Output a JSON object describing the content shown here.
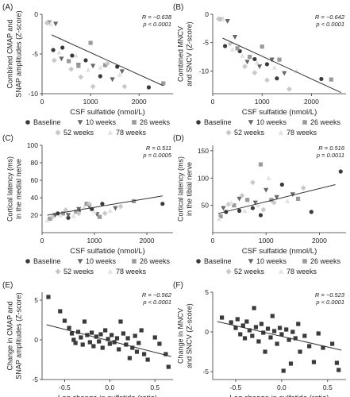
{
  "figure": {
    "legend_labels": {
      "baseline": "Baseline",
      "w10": "10 weeks",
      "w26": "26 weeks",
      "w52": "52 weeks",
      "w78": "78 weeks"
    },
    "series_colors": {
      "baseline": "#3a3a3a",
      "w10": "#666666",
      "w26": "#9a9a9a",
      "w52": "#c8c8c8",
      "w78": "#e2e2e2",
      "points": "#3a3a3a",
      "trend": "#333333"
    }
  },
  "chart_data": [
    {
      "panel": "(A)",
      "type": "scatter",
      "xlabel": "CSF sulfatide (nmol/L)",
      "ylabel": [
        "Combined CMAP and",
        "SNAP amplitudes (Z-score)"
      ],
      "xlim": [
        0,
        2700
      ],
      "ylim": [
        -10,
        0
      ],
      "xticks": [
        "0",
        "1000",
        "2000"
      ],
      "yticks": [
        "0",
        "-5",
        "-10"
      ],
      "stat_r": "R = −0.638",
      "stat_p": "p < 0.0001",
      "legend": true,
      "trend": [
        [
          200,
          -2.6
        ],
        [
          2500,
          -9.0
        ]
      ],
      "series": [
        {
          "key": "baseline",
          "points": [
            [
              230,
              -4.5
            ],
            [
              420,
              -4.2
            ],
            [
              620,
              -5.2
            ],
            [
              900,
              -5.8
            ],
            [
              1200,
              -7.8
            ],
            [
              1550,
              -6.6
            ],
            [
              2200,
              -9.2
            ]
          ]
        },
        {
          "key": "w10",
          "points": [
            [
              280,
              -1.2
            ],
            [
              400,
              -5.6
            ],
            [
              750,
              -6.4
            ],
            [
              1050,
              -6.5
            ],
            [
              1450,
              -8.2
            ],
            [
              1650,
              -7.2
            ]
          ]
        },
        {
          "key": "w26",
          "points": [
            [
              150,
              -1.0
            ],
            [
              550,
              -5.9
            ],
            [
              750,
              -6.5
            ],
            [
              1000,
              -3.6
            ],
            [
              1300,
              -6.4
            ],
            [
              2500,
              -8.7
            ]
          ]
        },
        {
          "key": "w52",
          "points": [
            [
              100,
              -1.1
            ],
            [
              250,
              -5.8
            ],
            [
              600,
              -6.9
            ],
            [
              800,
              -7.9
            ],
            [
              1050,
              -9.1
            ],
            [
              1350,
              -6.2
            ],
            [
              1700,
              -9.1
            ]
          ]
        },
        {
          "key": "w78",
          "points": [
            [
              180,
              -1.2
            ],
            [
              350,
              -4.8
            ],
            [
              700,
              -5.2
            ],
            [
              950,
              -7.0
            ],
            [
              1200,
              -6.7
            ],
            [
              1600,
              -7.6
            ]
          ]
        }
      ]
    },
    {
      "panel": "(B)",
      "type": "scatter",
      "xlabel": "CSF sulfatide (nmol/L)",
      "ylabel": [
        "Combined MNCV",
        "and SNCV (Z-score)"
      ],
      "xlim": [
        0,
        2700
      ],
      "ylim": [
        -14,
        0
      ],
      "xticks": [
        "0",
        "1000",
        "2000"
      ],
      "yticks": [
        "0",
        "-5",
        "-10"
      ],
      "stat_r": "R = −0.642",
      "stat_p": "p < 0.0001",
      "legend": true,
      "trend": [
        [
          200,
          -4.2
        ],
        [
          2600,
          -13.8
        ]
      ],
      "series": [
        {
          "key": "baseline",
          "points": [
            [
              250,
              -5.6
            ],
            [
              550,
              -6.5
            ],
            [
              850,
              -7.9
            ],
            [
              1100,
              -8.8
            ],
            [
              1300,
              -11.3
            ],
            [
              2200,
              -11.4
            ]
          ]
        },
        {
          "key": "w10",
          "points": [
            [
              300,
              -1.2
            ],
            [
              450,
              -4.0
            ],
            [
              700,
              -8.4
            ],
            [
              950,
              -9.2
            ],
            [
              1200,
              -8.0
            ],
            [
              1450,
              -10.4
            ]
          ]
        },
        {
          "key": "w26",
          "points": [
            [
              180,
              -0.9
            ],
            [
              500,
              -6.0
            ],
            [
              750,
              -7.5
            ],
            [
              1000,
              -5.7
            ],
            [
              1350,
              -8.0
            ],
            [
              2400,
              -11.5
            ]
          ]
        },
        {
          "key": "w52",
          "points": [
            [
              120,
              -0.8
            ],
            [
              350,
              -5.2
            ],
            [
              650,
              -9.2
            ],
            [
              850,
              -10.3
            ],
            [
              1100,
              -11.6
            ],
            [
              1550,
              -13.2
            ]
          ]
        },
        {
          "key": "w78",
          "points": [
            [
              200,
              -0.9
            ],
            [
              400,
              -6.2
            ],
            [
              600,
              -7.3
            ],
            [
              900,
              -8.5
            ],
            [
              1250,
              -9.4
            ],
            [
              1700,
              -10.0
            ]
          ]
        }
      ]
    },
    {
      "panel": "(C)",
      "type": "scatter",
      "xlabel": "CSF sulfatide (nmol/L)",
      "ylabel": [
        "Cortical latency (ms)",
        "in the medial nerve"
      ],
      "xlim": [
        0,
        2500
      ],
      "ylim": [
        0,
        100
      ],
      "xticks": [
        "0",
        "1000",
        "2000"
      ],
      "yticks": [
        "20",
        "40",
        "60",
        "80",
        "100"
      ],
      "stat_r": "R = 0.511",
      "stat_p": "p = 0.0005",
      "legend": true,
      "trend": [
        [
          100,
          20
        ],
        [
          2300,
          42
        ]
      ],
      "series": [
        {
          "key": "baseline",
          "points": [
            [
              300,
              22
            ],
            [
              500,
              17
            ],
            [
              700,
              25
            ],
            [
              950,
              27
            ],
            [
              1150,
              33
            ],
            [
              2300,
              33
            ]
          ]
        },
        {
          "key": "w10",
          "points": [
            [
              250,
              20
            ],
            [
              500,
              20
            ],
            [
              700,
              27
            ],
            [
              900,
              30
            ],
            [
              1050,
              21
            ],
            [
              1400,
              28
            ]
          ]
        },
        {
          "key": "w26",
          "points": [
            [
              150,
              16
            ],
            [
              400,
              22
            ],
            [
              650,
              24
            ],
            [
              850,
              33
            ],
            [
              1100,
              18
            ],
            [
              1750,
              36
            ]
          ]
        },
        {
          "key": "w52",
          "points": [
            [
              200,
              18
            ],
            [
              450,
              26
            ],
            [
              700,
              22
            ],
            [
              900,
              33
            ],
            [
              1200,
              22
            ],
            [
              1500,
              30
            ]
          ]
        },
        {
          "key": "w78",
          "points": [
            [
              100,
              14
            ],
            [
              350,
              20
            ],
            [
              600,
              19
            ],
            [
              800,
              29
            ],
            [
              1000,
              24
            ],
            [
              1300,
              25
            ]
          ]
        }
      ]
    },
    {
      "panel": "(D)",
      "type": "scatter",
      "xlabel": "CSF sulfatide (nmol/L)",
      "ylabel": [
        "Cortical latency (ms)",
        "in the tibial nerve"
      ],
      "xlim": [
        0,
        2500
      ],
      "ylim": [
        0,
        160
      ],
      "xticks": [
        "0",
        "1000",
        "2000"
      ],
      "yticks": [
        "50",
        "100",
        "150"
      ],
      "stat_r": "R = 0.516",
      "stat_p": "p = 0.0011",
      "legend": true,
      "trend": [
        [
          100,
          35
        ],
        [
          2300,
          88
        ]
      ],
      "series": [
        {
          "key": "baseline",
          "points": [
            [
              250,
              38
            ],
            [
              500,
              40
            ],
            [
              750,
              45
            ],
            [
              900,
              32
            ],
            [
              1300,
              88
            ],
            [
              1850,
              38
            ],
            [
              2400,
              112
            ]
          ]
        },
        {
          "key": "w10",
          "points": [
            [
              200,
              45
            ],
            [
              500,
              62
            ],
            [
              800,
              55
            ],
            [
              1000,
              78
            ],
            [
              1200,
              65
            ],
            [
              1500,
              70
            ]
          ]
        },
        {
          "key": "w26",
          "points": [
            [
              150,
              30
            ],
            [
              400,
              50
            ],
            [
              650,
              60
            ],
            [
              900,
              125
            ],
            [
              1100,
              60
            ],
            [
              1600,
              62
            ]
          ]
        },
        {
          "key": "w52",
          "points": [
            [
              300,
              52
            ],
            [
              550,
              68
            ],
            [
              750,
              92
            ],
            [
              950,
              42
            ],
            [
              1150,
              55
            ],
            [
              1700,
              82
            ]
          ]
        },
        {
          "key": "w78",
          "points": [
            [
              120,
              25
            ],
            [
              350,
              55
            ],
            [
              600,
              40
            ],
            [
              850,
              50
            ],
            [
              1050,
              100
            ],
            [
              1400,
              58
            ]
          ]
        }
      ]
    },
    {
      "panel": "(E)",
      "type": "scatter",
      "xlabel": "Log change in sulfatide (ratio)",
      "ylabel": [
        "Change in CMAP and",
        "SNAP amplitudes (Z-score)"
      ],
      "xlim": [
        -0.75,
        0.7
      ],
      "ylim": [
        -5,
        6
      ],
      "xticks": [
        "-0.5",
        "0.0",
        "0.5"
      ],
      "yticks": [
        "5",
        "0",
        "-5"
      ],
      "stat_r": "R = −0.562",
      "stat_p": "p < 0.0001",
      "legend": false,
      "trend": [
        [
          -0.7,
          1.9
        ],
        [
          0.68,
          -2.1
        ]
      ],
      "series": [
        {
          "key": "points",
          "points": [
            [
              -0.68,
              5.4
            ],
            [
              -0.55,
              3.6
            ],
            [
              -0.5,
              2.4
            ],
            [
              -0.45,
              1.5
            ],
            [
              -0.42,
              0.8
            ],
            [
              -0.4,
              0.0
            ],
            [
              -0.38,
              -0.4
            ],
            [
              -0.35,
              1.0
            ],
            [
              -0.32,
              0.3
            ],
            [
              -0.3,
              -0.6
            ],
            [
              -0.28,
              2.3
            ],
            [
              -0.25,
              0.6
            ],
            [
              -0.22,
              -0.3
            ],
            [
              -0.2,
              0.9
            ],
            [
              -0.18,
              -0.8
            ],
            [
              -0.15,
              0.4
            ],
            [
              -0.12,
              -0.2
            ],
            [
              -0.1,
              0.7
            ],
            [
              -0.08,
              -1.0
            ],
            [
              -0.05,
              1.2
            ],
            [
              -0.02,
              0.1
            ],
            [
              0.0,
              -0.5
            ],
            [
              0.02,
              0.6
            ],
            [
              0.05,
              -0.3
            ],
            [
              0.08,
              0.2
            ],
            [
              0.1,
              -1.2
            ],
            [
              0.12,
              2.3
            ],
            [
              0.15,
              0.8
            ],
            [
              0.18,
              -0.6
            ],
            [
              0.2,
              0.2
            ],
            [
              0.22,
              -2.3
            ],
            [
              0.25,
              -1.0
            ],
            [
              0.28,
              0.5
            ],
            [
              0.3,
              -1.5
            ],
            [
              0.32,
              -0.4
            ],
            [
              0.35,
              1.2
            ],
            [
              0.38,
              -1.8
            ],
            [
              0.42,
              -2.5
            ],
            [
              0.5,
              0.3
            ],
            [
              0.55,
              -0.5
            ],
            [
              0.62,
              -1.8
            ],
            [
              0.65,
              -3.4
            ]
          ]
        }
      ]
    },
    {
      "panel": "(F)",
      "type": "scatter",
      "xlabel": "Log change in sulfatide (ratio)",
      "ylabel": [
        "Change in MNCV",
        "and SNCV (Z-score)"
      ],
      "xlim": [
        -0.75,
        0.7
      ],
      "ylim": [
        -6,
        5
      ],
      "xticks": [
        "-0.5",
        "0.0",
        "0.5"
      ],
      "yticks": [
        "5",
        "0",
        "-5"
      ],
      "stat_r": "R = −0.523",
      "stat_p": "p < 0.0001",
      "legend": false,
      "trend": [
        [
          -0.7,
          1.3
        ],
        [
          0.65,
          -2.3
        ]
      ],
      "series": [
        {
          "key": "points",
          "points": [
            [
              -0.65,
              1.8
            ],
            [
              -0.55,
              1.2
            ],
            [
              -0.5,
              0.5
            ],
            [
              -0.48,
              1.6
            ],
            [
              -0.45,
              -0.3
            ],
            [
              -0.42,
              0.8
            ],
            [
              -0.4,
              -0.8
            ],
            [
              -0.38,
              1.3
            ],
            [
              -0.35,
              0.2
            ],
            [
              -0.32,
              -0.5
            ],
            [
              -0.3,
              3.0
            ],
            [
              -0.28,
              0.6
            ],
            [
              -0.25,
              -1.2
            ],
            [
              -0.22,
              1.0
            ],
            [
              -0.2,
              -0.1
            ],
            [
              -0.18,
              -2.5
            ],
            [
              -0.15,
              0.4
            ],
            [
              -0.12,
              -0.7
            ],
            [
              -0.1,
              2.0
            ],
            [
              -0.08,
              0.1
            ],
            [
              -0.05,
              -1.5
            ],
            [
              -0.02,
              0.5
            ],
            [
              0.0,
              -0.3
            ],
            [
              0.02,
              -4.9
            ],
            [
              0.05,
              0.3
            ],
            [
              0.08,
              -1.0
            ],
            [
              0.1,
              -4.0
            ],
            [
              0.12,
              0.0
            ],
            [
              0.15,
              -0.8
            ],
            [
              0.18,
              1.0
            ],
            [
              0.2,
              -2.5
            ],
            [
              0.25,
              -0.5
            ],
            [
              0.3,
              -1.8
            ],
            [
              0.35,
              -3.8
            ],
            [
              0.4,
              -0.2
            ],
            [
              0.45,
              -2.0
            ],
            [
              0.55,
              -1.5
            ],
            [
              0.6,
              -3.9
            ],
            [
              0.62,
              -4.8
            ]
          ]
        }
      ]
    }
  ]
}
